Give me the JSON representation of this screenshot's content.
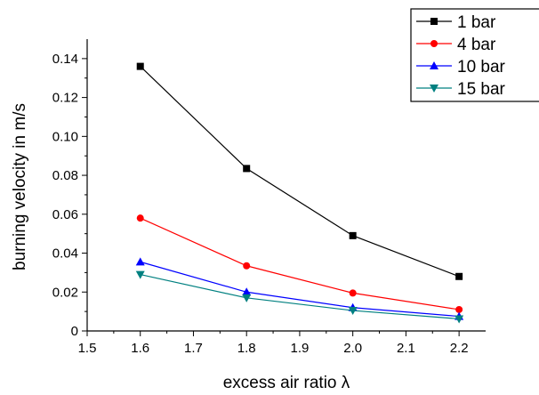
{
  "chart_data": {
    "type": "line",
    "title": "",
    "xlabel": "excess air ratio λ",
    "ylabel": "burning velocity in m/s",
    "xlim": [
      1.5,
      2.25
    ],
    "ylim": [
      0,
      0.15
    ],
    "x_ticks": [
      "1.5",
      "1.6",
      "1.7",
      "1.8",
      "1.9",
      "2.0",
      "2.1",
      "2.2"
    ],
    "y_ticks": [
      "0",
      "0.02",
      "0.04",
      "0.06",
      "0.08",
      "0.10",
      "0.12",
      "0.14"
    ],
    "grid": false,
    "legend_position": "top-right",
    "x": [
      1.6,
      1.8,
      2.0,
      2.2
    ],
    "series": [
      {
        "name": "1 bar",
        "values": [
          0.136,
          0.0835,
          0.049,
          0.028
        ],
        "color": "#000000",
        "marker": "square"
      },
      {
        "name": "4 bar",
        "values": [
          0.058,
          0.0335,
          0.0195,
          0.011
        ],
        "color": "#ff0000",
        "marker": "circle"
      },
      {
        "name": "10 bar",
        "values": [
          0.0355,
          0.02,
          0.012,
          0.0075
        ],
        "color": "#0000ff",
        "marker": "triangle-up"
      },
      {
        "name": "15 bar",
        "values": [
          0.029,
          0.017,
          0.0105,
          0.0062
        ],
        "color": "#008080",
        "marker": "triangle-down"
      }
    ]
  }
}
